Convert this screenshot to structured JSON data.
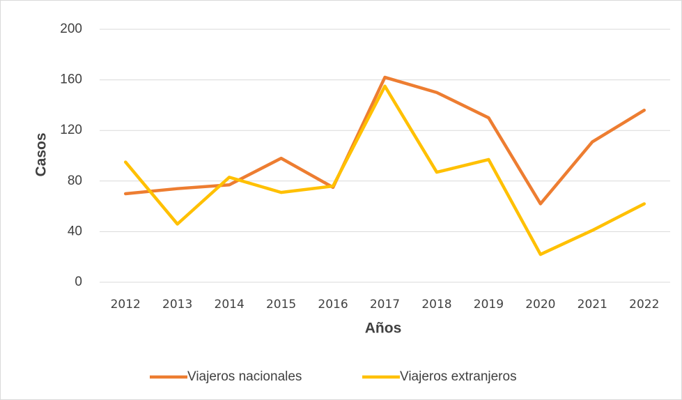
{
  "chart_data": {
    "type": "line",
    "x_label": "Años",
    "y_label": "Casos",
    "categories": [
      "2012",
      "2013",
      "2014",
      "2015",
      "2016",
      "2017",
      "2018",
      "2019",
      "2020",
      "2021",
      "2022"
    ],
    "series": [
      {
        "name": "Viajeros nacionales",
        "color": "#ED7D31",
        "values": [
          70,
          74,
          77,
          98,
          75,
          162,
          150,
          130,
          62,
          111,
          136
        ]
      },
      {
        "name": "Viajeros extranjeros",
        "color": "#FFC000",
        "values": [
          95,
          46,
          83,
          71,
          76,
          155,
          87,
          97,
          22,
          41,
          62
        ]
      }
    ],
    "ylim": [
      0,
      200
    ],
    "yticks": [
      0,
      40,
      80,
      120,
      160,
      200
    ],
    "grid": true,
    "legend": "bottom"
  }
}
